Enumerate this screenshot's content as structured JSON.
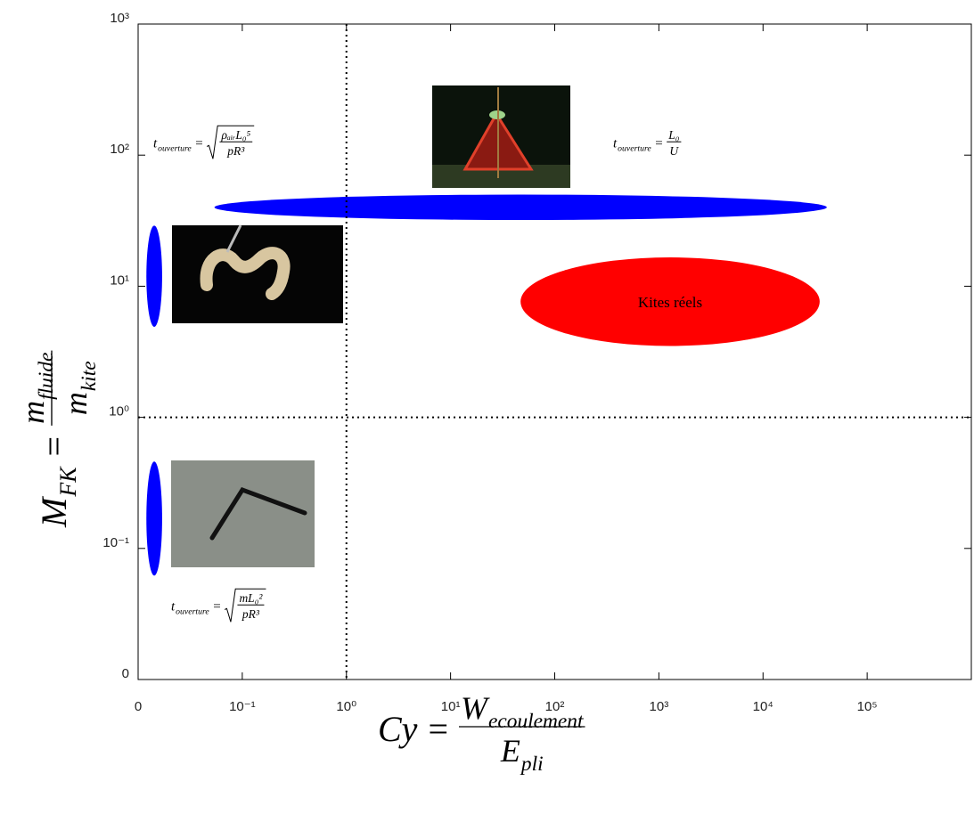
{
  "chart_data": {
    "type": "region",
    "xscale": "log",
    "yscale": "log",
    "xlim": [
      0.01,
      1000000
    ],
    "ylim": [
      0.01,
      1000
    ],
    "xticks": [
      {
        "value": 0.01,
        "label": "0"
      },
      {
        "value": 0.1,
        "label": "10⁻¹"
      },
      {
        "value": 1,
        "label": "10⁰"
      },
      {
        "value": 10,
        "label": "10¹"
      },
      {
        "value": 100,
        "label": "10²"
      },
      {
        "value": 1000,
        "label": "10³"
      },
      {
        "value": 10000,
        "label": "10⁴"
      },
      {
        "value": 100000,
        "label": "10⁵"
      }
    ],
    "yticks": [
      {
        "value": 0.01,
        "label": "0"
      },
      {
        "value": 0.1,
        "label": "10⁻¹"
      },
      {
        "value": 1,
        "label": "10⁰"
      },
      {
        "value": 10,
        "label": "10¹"
      },
      {
        "value": 100,
        "label": "10²"
      },
      {
        "value": 1000,
        "label": "10³"
      }
    ],
    "xlabel": {
      "lhs": "Cy",
      "rel": "=",
      "num": "W",
      "num_sub": "ecoulement",
      "den": "E",
      "den_sub": "pli"
    },
    "ylabel": {
      "lhs": "M",
      "lhs_sub": "FK",
      "rel": "=",
      "num": "m",
      "num_sub": "fluide",
      "den": "m",
      "den_sub": "kite"
    },
    "reference_lines": {
      "x": [
        1
      ],
      "y": [
        1
      ]
    },
    "regions": [
      {
        "color": "#0000ff",
        "xrange": [
          0.054,
          41000
        ],
        "yrange": [
          32,
          50
        ]
      },
      {
        "color": "#0000ff",
        "xrange": [
          0.012,
          0.017
        ],
        "yrange": [
          4.9,
          29
        ]
      },
      {
        "color": "#0000ff",
        "xrange": [
          0.012,
          0.017
        ],
        "yrange": [
          0.062,
          0.46
        ]
      },
      {
        "name": "Kites réels",
        "color": "#ff0000",
        "xrange": [
          47,
          35000
        ],
        "yrange": [
          3.5,
          16.6
        ]
      }
    ],
    "annotations": [
      {
        "lhs": "t",
        "lhs_sub": "ouverture",
        "rel": "=",
        "sqrt": true,
        "num": "ρₐᵢᵣL₀⁵",
        "den": "pR³"
      },
      {
        "lhs": "t",
        "lhs_sub": "ouverture",
        "rel": "=",
        "sqrt": false,
        "num": "L₀",
        "den": "U"
      },
      {
        "lhs": "t",
        "lhs_sub": "ouverture",
        "rel": "=",
        "sqrt": true,
        "num": "mL₀²",
        "den": "pR³"
      }
    ]
  }
}
